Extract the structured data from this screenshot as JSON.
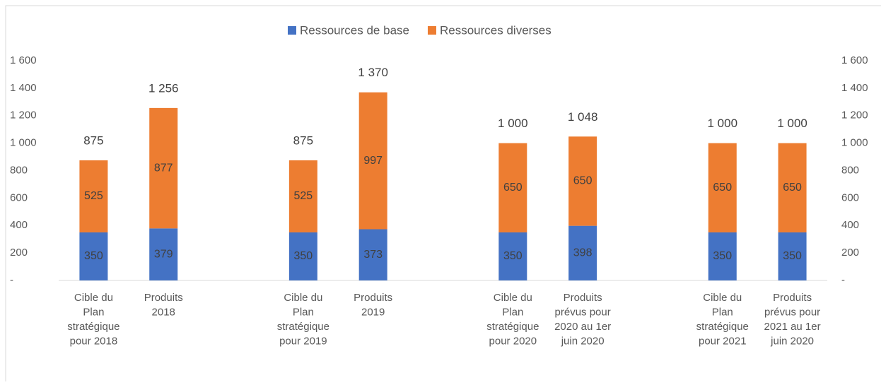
{
  "chart_data": {
    "type": "stacked_bar",
    "categories": [
      "Cible du\nPlan\nstratégique\npour 2018",
      "Produits\n2018",
      null,
      "Cible du\nPlan\nstratégique\npour 2019",
      "Produits\n2019",
      null,
      "Cible du\nPlan\nstratégique\npour 2020",
      "Produits\nprévus pour\n2020 au 1er\njuin 2020",
      null,
      "Cible du\nPlan\nstratégique\npour 2021",
      "Produits\nprévus pour\n2021 au 1er\njuin 2020"
    ],
    "series": [
      {
        "name": "Ressources de base",
        "color": "#4472c4",
        "values": [
          350,
          379,
          null,
          350,
          373,
          null,
          350,
          398,
          null,
          350,
          350
        ]
      },
      {
        "name": "Ressources diverses",
        "color": "#ed7d31",
        "values": [
          525,
          877,
          null,
          525,
          997,
          null,
          650,
          650,
          null,
          650,
          650
        ]
      }
    ],
    "totals": [
      875,
      1256,
      null,
      875,
      1370,
      null,
      1000,
      1048,
      null,
      1000,
      1000
    ],
    "totals_labels": [
      "875",
      "1 256",
      null,
      "875",
      "1 370",
      null,
      "1 000",
      "1 048",
      null,
      "1 000",
      "1 000"
    ],
    "ylim": [
      0,
      1600
    ],
    "yticks": [
      {
        "value": 0,
        "label": "-"
      },
      200,
      400,
      600,
      800,
      {
        "value": 1000,
        "label": "1 000"
      },
      {
        "value": 1200,
        "label": "1 200"
      },
      {
        "value": 1400,
        "label": "1 400"
      },
      {
        "value": 1600,
        "label": "1 600"
      }
    ],
    "y2lim": [
      0,
      1600
    ],
    "y2ticks": [
      {
        "value": 0,
        "label": "-"
      },
      200,
      400,
      600,
      800,
      {
        "value": 1000,
        "label": "1 000"
      },
      {
        "value": 1200,
        "label": "1 200"
      },
      {
        "value": 1400,
        "label": "1 400"
      },
      {
        "value": 1600,
        "label": "1 600"
      }
    ],
    "grid": false,
    "legend": "top"
  }
}
